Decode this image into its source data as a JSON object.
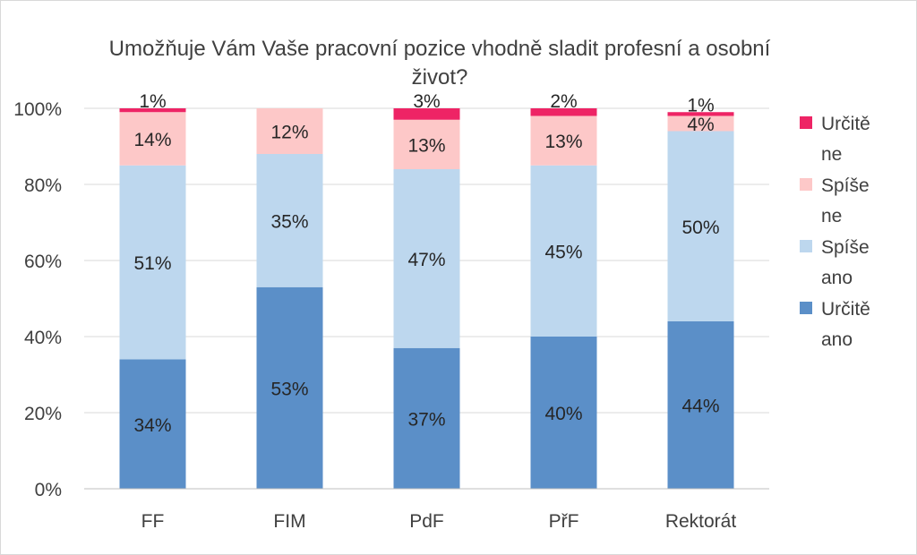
{
  "chart_data": {
    "type": "bar",
    "stacked": true,
    "title": "Umožňuje Vám Vaše pracovní pozice vhodně sladit profesní a osobní život?",
    "categories": [
      "FF",
      "FIM",
      "PdF",
      "PřF",
      "Rektorát"
    ],
    "series": [
      {
        "name": "Určitě ano",
        "color": "#5b8fc8",
        "values": [
          34,
          53,
          37,
          40,
          44
        ],
        "labels": [
          "34%",
          "53%",
          "37%",
          "40%",
          "44%"
        ]
      },
      {
        "name": "Spíše ano",
        "color": "#bdd7ee",
        "values": [
          51,
          35,
          47,
          45,
          50
        ],
        "labels": [
          "51%",
          "35%",
          "47%",
          "45%",
          "50%"
        ]
      },
      {
        "name": "Spíše ne",
        "color": "#fdc8c8",
        "values": [
          14,
          12,
          13,
          13,
          4
        ],
        "labels": [
          "14%",
          "12%",
          "13%",
          "13%",
          "4%"
        ]
      },
      {
        "name": "Určitě ne",
        "color": "#ee2465",
        "values": [
          1,
          0,
          3,
          2,
          1
        ],
        "labels": [
          "1%",
          "",
          "3%",
          "2%",
          "1%"
        ]
      }
    ],
    "y_ticks": [
      "0%",
      "20%",
      "40%",
      "60%",
      "80%",
      "100%"
    ],
    "ylim": [
      0,
      100
    ],
    "grid": true,
    "legend_position": "right"
  }
}
